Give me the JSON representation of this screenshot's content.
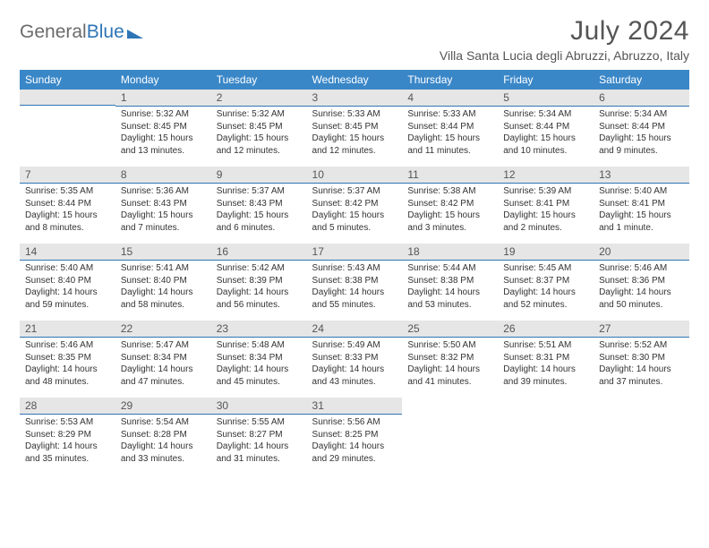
{
  "logo": {
    "word1": "General",
    "word2": "Blue"
  },
  "header": {
    "month_title": "July 2024",
    "location": "Villa Santa Lucia degli Abruzzi, Abruzzo, Italy"
  },
  "weekdays": [
    "Sunday",
    "Monday",
    "Tuesday",
    "Wednesday",
    "Thursday",
    "Friday",
    "Saturday"
  ],
  "colors": {
    "header_bg": "#3a87c8",
    "accent_line": "#2e75b6",
    "daynum_bg": "#e6e6e6"
  },
  "weeks": [
    [
      null,
      {
        "n": "1",
        "sr": "Sunrise: 5:32 AM",
        "ss": "Sunset: 8:45 PM",
        "dl": "Daylight: 15 hours and 13 minutes."
      },
      {
        "n": "2",
        "sr": "Sunrise: 5:32 AM",
        "ss": "Sunset: 8:45 PM",
        "dl": "Daylight: 15 hours and 12 minutes."
      },
      {
        "n": "3",
        "sr": "Sunrise: 5:33 AM",
        "ss": "Sunset: 8:45 PM",
        "dl": "Daylight: 15 hours and 12 minutes."
      },
      {
        "n": "4",
        "sr": "Sunrise: 5:33 AM",
        "ss": "Sunset: 8:44 PM",
        "dl": "Daylight: 15 hours and 11 minutes."
      },
      {
        "n": "5",
        "sr": "Sunrise: 5:34 AM",
        "ss": "Sunset: 8:44 PM",
        "dl": "Daylight: 15 hours and 10 minutes."
      },
      {
        "n": "6",
        "sr": "Sunrise: 5:34 AM",
        "ss": "Sunset: 8:44 PM",
        "dl": "Daylight: 15 hours and 9 minutes."
      }
    ],
    [
      {
        "n": "7",
        "sr": "Sunrise: 5:35 AM",
        "ss": "Sunset: 8:44 PM",
        "dl": "Daylight: 15 hours and 8 minutes."
      },
      {
        "n": "8",
        "sr": "Sunrise: 5:36 AM",
        "ss": "Sunset: 8:43 PM",
        "dl": "Daylight: 15 hours and 7 minutes."
      },
      {
        "n": "9",
        "sr": "Sunrise: 5:37 AM",
        "ss": "Sunset: 8:43 PM",
        "dl": "Daylight: 15 hours and 6 minutes."
      },
      {
        "n": "10",
        "sr": "Sunrise: 5:37 AM",
        "ss": "Sunset: 8:42 PM",
        "dl": "Daylight: 15 hours and 5 minutes."
      },
      {
        "n": "11",
        "sr": "Sunrise: 5:38 AM",
        "ss": "Sunset: 8:42 PM",
        "dl": "Daylight: 15 hours and 3 minutes."
      },
      {
        "n": "12",
        "sr": "Sunrise: 5:39 AM",
        "ss": "Sunset: 8:41 PM",
        "dl": "Daylight: 15 hours and 2 minutes."
      },
      {
        "n": "13",
        "sr": "Sunrise: 5:40 AM",
        "ss": "Sunset: 8:41 PM",
        "dl": "Daylight: 15 hours and 1 minute."
      }
    ],
    [
      {
        "n": "14",
        "sr": "Sunrise: 5:40 AM",
        "ss": "Sunset: 8:40 PM",
        "dl": "Daylight: 14 hours and 59 minutes."
      },
      {
        "n": "15",
        "sr": "Sunrise: 5:41 AM",
        "ss": "Sunset: 8:40 PM",
        "dl": "Daylight: 14 hours and 58 minutes."
      },
      {
        "n": "16",
        "sr": "Sunrise: 5:42 AM",
        "ss": "Sunset: 8:39 PM",
        "dl": "Daylight: 14 hours and 56 minutes."
      },
      {
        "n": "17",
        "sr": "Sunrise: 5:43 AM",
        "ss": "Sunset: 8:38 PM",
        "dl": "Daylight: 14 hours and 55 minutes."
      },
      {
        "n": "18",
        "sr": "Sunrise: 5:44 AM",
        "ss": "Sunset: 8:38 PM",
        "dl": "Daylight: 14 hours and 53 minutes."
      },
      {
        "n": "19",
        "sr": "Sunrise: 5:45 AM",
        "ss": "Sunset: 8:37 PM",
        "dl": "Daylight: 14 hours and 52 minutes."
      },
      {
        "n": "20",
        "sr": "Sunrise: 5:46 AM",
        "ss": "Sunset: 8:36 PM",
        "dl": "Daylight: 14 hours and 50 minutes."
      }
    ],
    [
      {
        "n": "21",
        "sr": "Sunrise: 5:46 AM",
        "ss": "Sunset: 8:35 PM",
        "dl": "Daylight: 14 hours and 48 minutes."
      },
      {
        "n": "22",
        "sr": "Sunrise: 5:47 AM",
        "ss": "Sunset: 8:34 PM",
        "dl": "Daylight: 14 hours and 47 minutes."
      },
      {
        "n": "23",
        "sr": "Sunrise: 5:48 AM",
        "ss": "Sunset: 8:34 PM",
        "dl": "Daylight: 14 hours and 45 minutes."
      },
      {
        "n": "24",
        "sr": "Sunrise: 5:49 AM",
        "ss": "Sunset: 8:33 PM",
        "dl": "Daylight: 14 hours and 43 minutes."
      },
      {
        "n": "25",
        "sr": "Sunrise: 5:50 AM",
        "ss": "Sunset: 8:32 PM",
        "dl": "Daylight: 14 hours and 41 minutes."
      },
      {
        "n": "26",
        "sr": "Sunrise: 5:51 AM",
        "ss": "Sunset: 8:31 PM",
        "dl": "Daylight: 14 hours and 39 minutes."
      },
      {
        "n": "27",
        "sr": "Sunrise: 5:52 AM",
        "ss": "Sunset: 8:30 PM",
        "dl": "Daylight: 14 hours and 37 minutes."
      }
    ],
    [
      {
        "n": "28",
        "sr": "Sunrise: 5:53 AM",
        "ss": "Sunset: 8:29 PM",
        "dl": "Daylight: 14 hours and 35 minutes."
      },
      {
        "n": "29",
        "sr": "Sunrise: 5:54 AM",
        "ss": "Sunset: 8:28 PM",
        "dl": "Daylight: 14 hours and 33 minutes."
      },
      {
        "n": "30",
        "sr": "Sunrise: 5:55 AM",
        "ss": "Sunset: 8:27 PM",
        "dl": "Daylight: 14 hours and 31 minutes."
      },
      {
        "n": "31",
        "sr": "Sunrise: 5:56 AM",
        "ss": "Sunset: 8:25 PM",
        "dl": "Daylight: 14 hours and 29 minutes."
      },
      null,
      null,
      null
    ]
  ]
}
